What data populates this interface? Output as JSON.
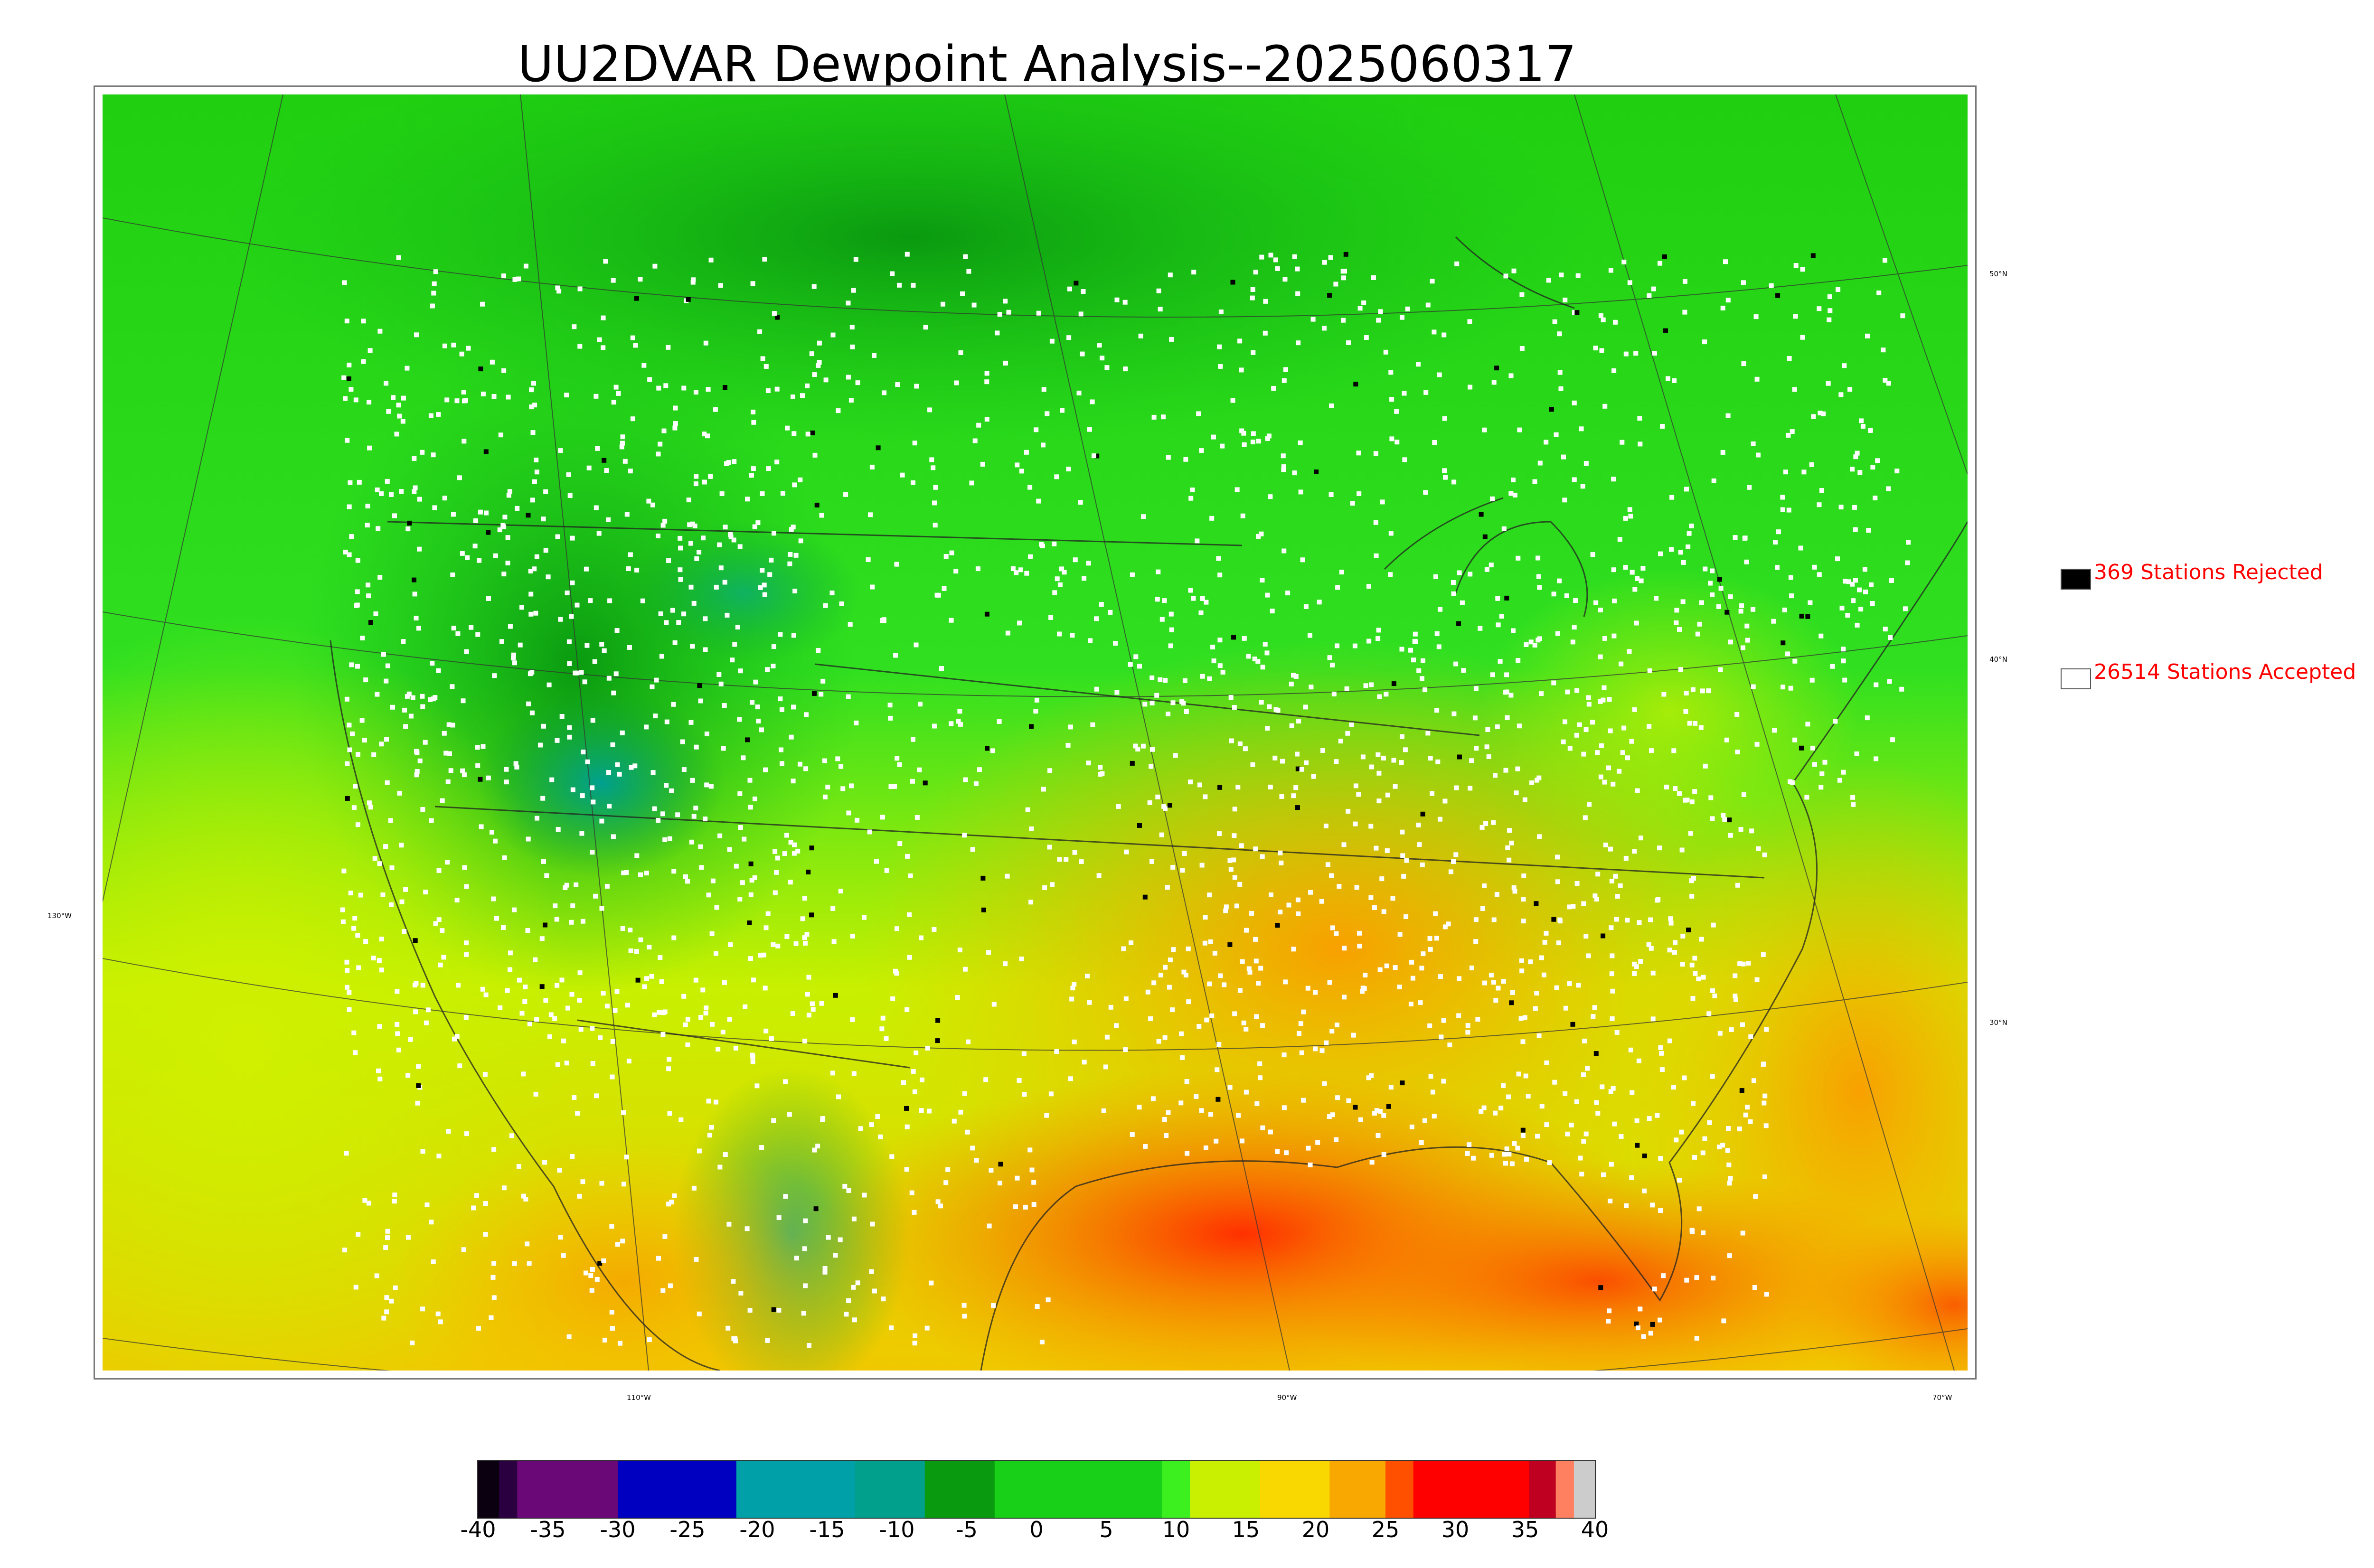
{
  "title": "UU2DVAR Dewpoint Analysis--2025060317",
  "legend": {
    "rejected": {
      "label": "369 Stations Rejected",
      "swatch_color": "#000000"
    },
    "accepted": {
      "label": "26514 Stations Accepted",
      "swatch_color": "#ffffff"
    }
  },
  "graticule": {
    "lat_labels": [
      "50°N",
      "40°N",
      "30°N"
    ],
    "lon_labels": [
      "130°W",
      "110°W",
      "90°W",
      "70°W"
    ]
  },
  "colorbar": {
    "ticks": [
      "-40",
      "-35",
      "-30",
      "-25",
      "-20",
      "-15",
      "-10",
      "-5",
      "0",
      "5",
      "10",
      "15",
      "20",
      "25",
      "30",
      "35",
      "40"
    ],
    "range": [
      -40,
      40
    ],
    "colors": [
      {
        "from": -40,
        "to": -38.5,
        "color": "#0a0010"
      },
      {
        "from": -38.5,
        "to": -37.2,
        "color": "#2a0040"
      },
      {
        "from": -37.2,
        "to": -30,
        "color": "#6a0878"
      },
      {
        "from": -30,
        "to": -21.5,
        "color": "#0000c0"
      },
      {
        "from": -21.5,
        "to": -13,
        "color": "#00a0a8"
      },
      {
        "from": -13,
        "to": -8,
        "color": "#00a08c"
      },
      {
        "from": -8,
        "to": -3,
        "color": "#0a9a10"
      },
      {
        "from": -3,
        "to": 9,
        "color": "#18d018"
      },
      {
        "from": 9,
        "to": 11,
        "color": "#3cf020"
      },
      {
        "from": 11,
        "to": 16,
        "color": "#c8f000"
      },
      {
        "from": 16,
        "to": 21,
        "color": "#f8d800"
      },
      {
        "from": 21,
        "to": 25,
        "color": "#f8a800"
      },
      {
        "from": 25,
        "to": 27,
        "color": "#ff5000"
      },
      {
        "from": 27,
        "to": 35.3,
        "color": "#ff0000"
      },
      {
        "from": 35.3,
        "to": 37.2,
        "color": "#c00020"
      },
      {
        "from": 37.2,
        "to": 38.5,
        "color": "#ff8060"
      },
      {
        "from": 38.5,
        "to": 40,
        "color": "#cccccc"
      }
    ]
  }
}
